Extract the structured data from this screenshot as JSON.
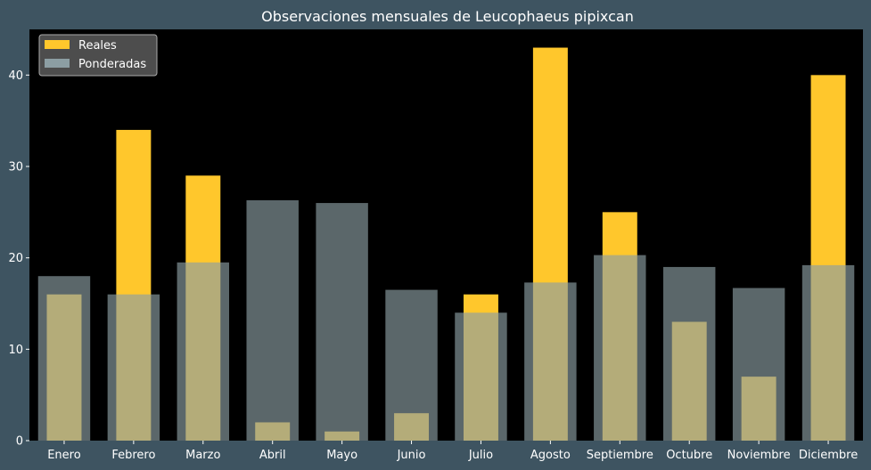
{
  "chart_data": {
    "type": "bar",
    "title": "Observaciones mensuales de Leucophaeus pipixcan",
    "xlabel": "",
    "ylabel": "",
    "categories": [
      "Enero",
      "Febrero",
      "Marzo",
      "Abril",
      "Mayo",
      "Junio",
      "Julio",
      "Agosto",
      "Septiembre",
      "Octubre",
      "Noviembre",
      "Diciembre"
    ],
    "series": [
      {
        "name": "Reales",
        "color": "#ffc72c",
        "values": [
          16,
          34,
          29,
          2,
          1,
          3,
          16,
          43,
          25,
          13,
          7,
          40
        ]
      },
      {
        "name": "Ponderadas",
        "color": "#8c9ea3",
        "values": [
          18,
          16,
          19.5,
          26.3,
          26,
          16.5,
          14,
          17.3,
          20.3,
          19,
          16.7,
          19.2
        ]
      }
    ],
    "ylim": [
      0,
      45
    ],
    "yticks": [
      0,
      10,
      20,
      30,
      40
    ],
    "grid": false,
    "legend_position": "top-left",
    "colors": {
      "page_background": "#3e5461",
      "plot_background": "#000000",
      "text": "#ffffff"
    }
  }
}
